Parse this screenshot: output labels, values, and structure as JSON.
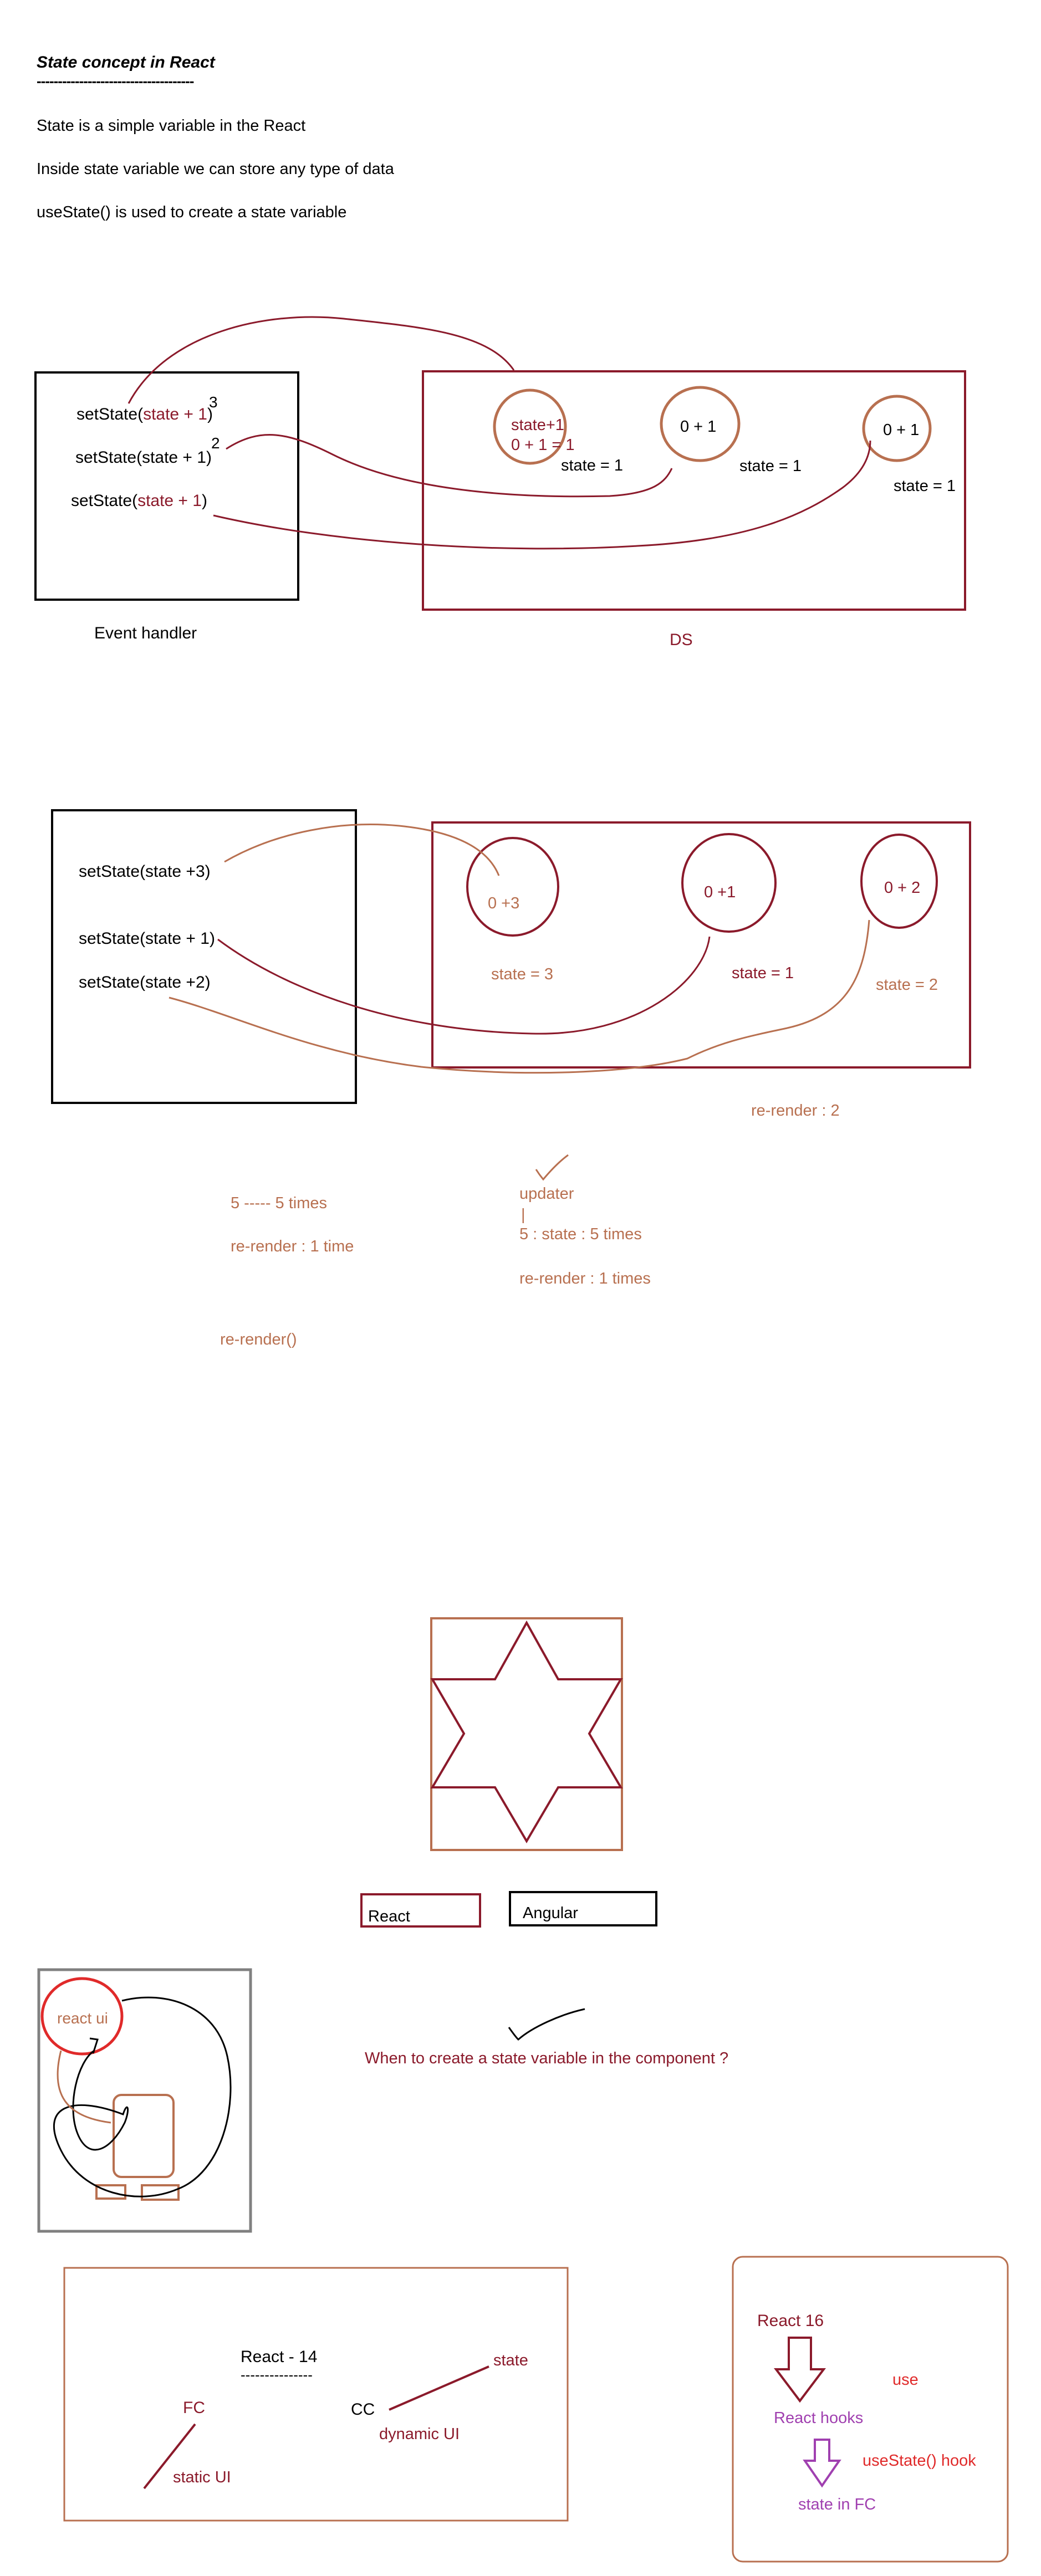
{
  "heading": {
    "title": "State concept in React",
    "underline": "-------------------------------------"
  },
  "intro": {
    "line1": "State is a simple variable in the React",
    "line2": "Inside state variable we can store any type of data",
    "line3": "useState() is used to create a state variable"
  },
  "diagram1": {
    "calls": [
      {
        "prefix": "setState(",
        "arg": "state + 1",
        "suffix": ")"
      },
      {
        "prefix": "setState(state + 1",
        "arg": "",
        "suffix": ")"
      },
      {
        "prefix": "setState(",
        "arg": "state + 1",
        "suffix": ")"
      }
    ],
    "numbers": [
      "3",
      "2"
    ],
    "handler_label": "Event handler",
    "ds_label": "DS",
    "circles": [
      {
        "line1": "state+1",
        "line2": "0 + 1 = 1"
      },
      {
        "line1": "0 + 1"
      },
      {
        "line1": "0 + 1"
      }
    ],
    "states": [
      "state = 1",
      "state = 1",
      "state = 1"
    ]
  },
  "diagram2": {
    "calls": [
      "setState(state +3)",
      "setState(state + 1)",
      "setState(state +2)"
    ],
    "circles": [
      "0 +3",
      "0 +1",
      "0 + 2"
    ],
    "states": [
      "state = 3",
      "state = 1",
      "state = 2"
    ],
    "rerender": "re-render : 2"
  },
  "notes": {
    "times": "5 ----- 5 times",
    "rerender1": "re-render : 1 time",
    "rerender_fn": "re-render()",
    "updater": "updater",
    "pipe": "|",
    "state5": "5 : state : 5 times",
    "rerender_times": "re-render : 1 times"
  },
  "tags": {
    "react": "React",
    "angular": "Angular"
  },
  "sketch": {
    "react_ui": "react ui"
  },
  "question": "When to create a state variable in the component ?",
  "history": {
    "title": "React - 14",
    "underline": "---------------",
    "fc": "FC",
    "cc": "CC",
    "state": "state",
    "dynamic": "dynamic UI",
    "static": "static UI"
  },
  "hooks": {
    "version": "React 16",
    "use": "use",
    "react_hooks": "React hooks",
    "usestate_hook": "useState() hook",
    "state_fc": "state in FC"
  },
  "colors": {
    "dark_red": "#8b1a2b",
    "brown": "#b87050",
    "red": "#e02a2a",
    "purple": "#a040b0",
    "gray": "#808080"
  }
}
